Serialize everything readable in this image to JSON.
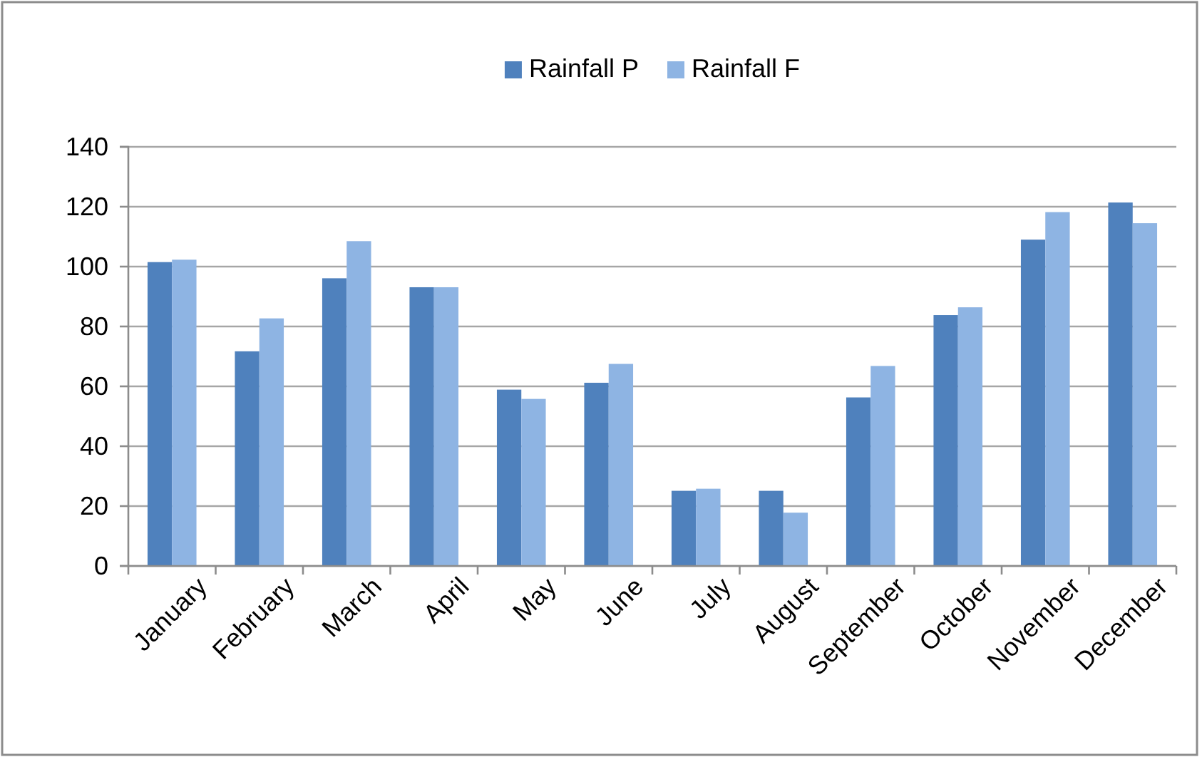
{
  "chart_data": {
    "type": "bar",
    "categories": [
      "January",
      "February",
      "March",
      "April",
      "May",
      "June",
      "July",
      "August",
      "September",
      "October",
      "November",
      "December"
    ],
    "series": [
      {
        "name": "Rainfall P",
        "color": "#4f81bd",
        "values": [
          101.5,
          71.7,
          96.1,
          93.1,
          58.9,
          61.2,
          25.1,
          25.1,
          56.3,
          83.8,
          109.0,
          121.4
        ]
      },
      {
        "name": "Rainfall F",
        "color": "#8eb4e3",
        "values": [
          102.3,
          82.7,
          108.5,
          93.1,
          55.8,
          67.5,
          25.8,
          17.8,
          66.8,
          86.4,
          118.2,
          114.5
        ]
      }
    ],
    "ylim": [
      0,
      140
    ],
    "yticks": [
      0,
      20,
      40,
      60,
      80,
      100,
      120,
      140
    ],
    "grid": "y",
    "legend": "top"
  }
}
